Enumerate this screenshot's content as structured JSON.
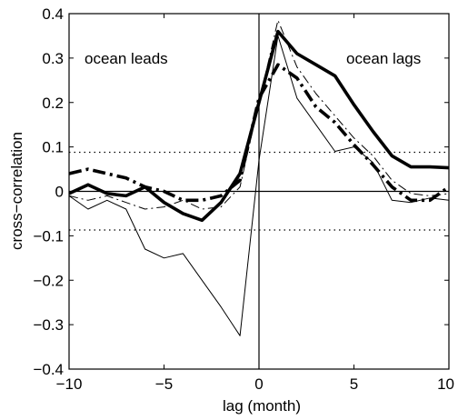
{
  "chart_data": {
    "type": "line",
    "title": "",
    "xlabel": "lag (month)",
    "ylabel": "cross−correlation",
    "xlim": [
      -10,
      10
    ],
    "ylim": [
      -0.4,
      0.4
    ],
    "xticks": [
      -10,
      -5,
      0,
      5,
      10
    ],
    "xtick_labels": [
      "−10",
      "−5",
      "0",
      "5",
      "10"
    ],
    "yticks": [
      -0.4,
      -0.3,
      -0.2,
      -0.1,
      0,
      0.1,
      0.2,
      0.3,
      0.4
    ],
    "ytick_labels": [
      "−0.4",
      "−0.3",
      "−0.2",
      "−0.1",
      "0",
      "0.1",
      "0.2",
      "0.3",
      "0.4"
    ],
    "grid": false,
    "annotations": {
      "left": "ocean leads",
      "right": "ocean lags"
    },
    "significance_levels": [
      0.088,
      -0.087
    ],
    "reference_lines": {
      "y": 0,
      "x": 0
    },
    "series": [
      {
        "style": "solid-thick",
        "x": [
          -10,
          -9,
          -8,
          -7,
          -6,
          -5,
          -4,
          -3,
          -2,
          -1,
          0,
          1,
          2,
          3,
          4,
          5,
          6,
          7,
          8,
          9,
          10
        ],
        "values": [
          -0.005,
          0.015,
          -0.005,
          -0.01,
          0.01,
          -0.025,
          -0.05,
          -0.065,
          -0.025,
          0.04,
          0.2,
          0.36,
          0.31,
          0.285,
          0.26,
          0.195,
          0.135,
          0.08,
          0.055,
          0.055,
          0.053
        ]
      },
      {
        "style": "solid-thin",
        "x": [
          -10,
          -9,
          -8,
          -7,
          -6,
          -5,
          -4,
          -3,
          -2,
          -1,
          0,
          1,
          2,
          3,
          4,
          5,
          6,
          7,
          8,
          9,
          10
        ],
        "values": [
          -0.01,
          -0.04,
          -0.02,
          -0.04,
          -0.13,
          -0.15,
          -0.14,
          -0.2,
          -0.26,
          -0.325,
          0.07,
          0.35,
          0.21,
          0.15,
          0.09,
          0.1,
          0.065,
          -0.02,
          -0.025,
          -0.015,
          -0.02
        ]
      },
      {
        "style": "dash-dot-thick",
        "x": [
          -10,
          -9,
          -8,
          -7,
          -6,
          -5,
          -4,
          -3,
          -2,
          -1,
          0,
          1,
          2,
          3,
          4,
          5,
          6,
          7,
          8,
          9,
          10
        ],
        "values": [
          0.04,
          0.05,
          0.04,
          0.03,
          0.01,
          0.0,
          -0.02,
          -0.02,
          -0.01,
          0.025,
          0.21,
          0.285,
          0.255,
          0.19,
          0.155,
          0.105,
          0.06,
          0.01,
          -0.02,
          -0.02,
          0.01
        ]
      },
      {
        "style": "dash-dot-thin",
        "x": [
          -10,
          -9,
          -8,
          -7,
          -6,
          -5,
          -4,
          -3,
          -2,
          -1,
          0,
          1,
          2,
          3,
          4,
          5,
          6,
          7,
          8,
          9,
          10
        ],
        "values": [
          -0.01,
          -0.02,
          -0.01,
          -0.025,
          -0.04,
          -0.035,
          -0.02,
          -0.04,
          -0.035,
          0.01,
          0.2,
          0.385,
          0.28,
          0.22,
          0.17,
          0.12,
          0.08,
          0.025,
          -0.005,
          -0.01,
          -0.005
        ]
      }
    ]
  }
}
